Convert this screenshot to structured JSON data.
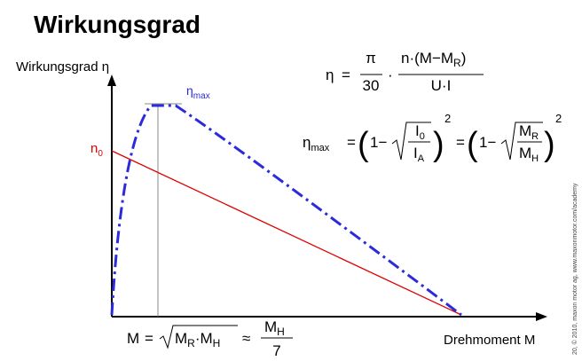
{
  "title": "Wirkungsgrad",
  "y_axis_label": "Wirkungsgrad η",
  "x_axis_label": "Drehmoment M",
  "eta_max_label": {
    "base": "η",
    "sub": "max"
  },
  "n0_label": {
    "base": "n",
    "sub": "0"
  },
  "formula_efficiency": {
    "lhs": "η",
    "eq": "=",
    "num1": "π",
    "den1": "30",
    "dot": "·",
    "num2": "n·(M−M",
    "num2_sub": "R",
    "num2_end": ")",
    "den2": "U·I"
  },
  "formula_eta_max": {
    "lhs": "η",
    "lhs_sub": "max",
    "eq1": "=",
    "one1": "1−",
    "num1": "I",
    "num1_sub": "0",
    "den1": "I",
    "den1_sub": "A",
    "exp1": "2",
    "eq2": "=",
    "one2": "1−",
    "num2": "M",
    "num2_sub": "R",
    "den2": "M",
    "den2_sub": "H",
    "exp2": "2"
  },
  "formula_torque": {
    "lhs": "M",
    "eq": "=",
    "r1": "M",
    "r1_sub": "R",
    "dot": "·M",
    "r2_sub": "H",
    "approx": "≈",
    "num": "M",
    "num_sub": "H",
    "den": "7"
  },
  "copyright": "20, © 2010, maxon motor ag, www.maxonmotor.com/academy"
}
